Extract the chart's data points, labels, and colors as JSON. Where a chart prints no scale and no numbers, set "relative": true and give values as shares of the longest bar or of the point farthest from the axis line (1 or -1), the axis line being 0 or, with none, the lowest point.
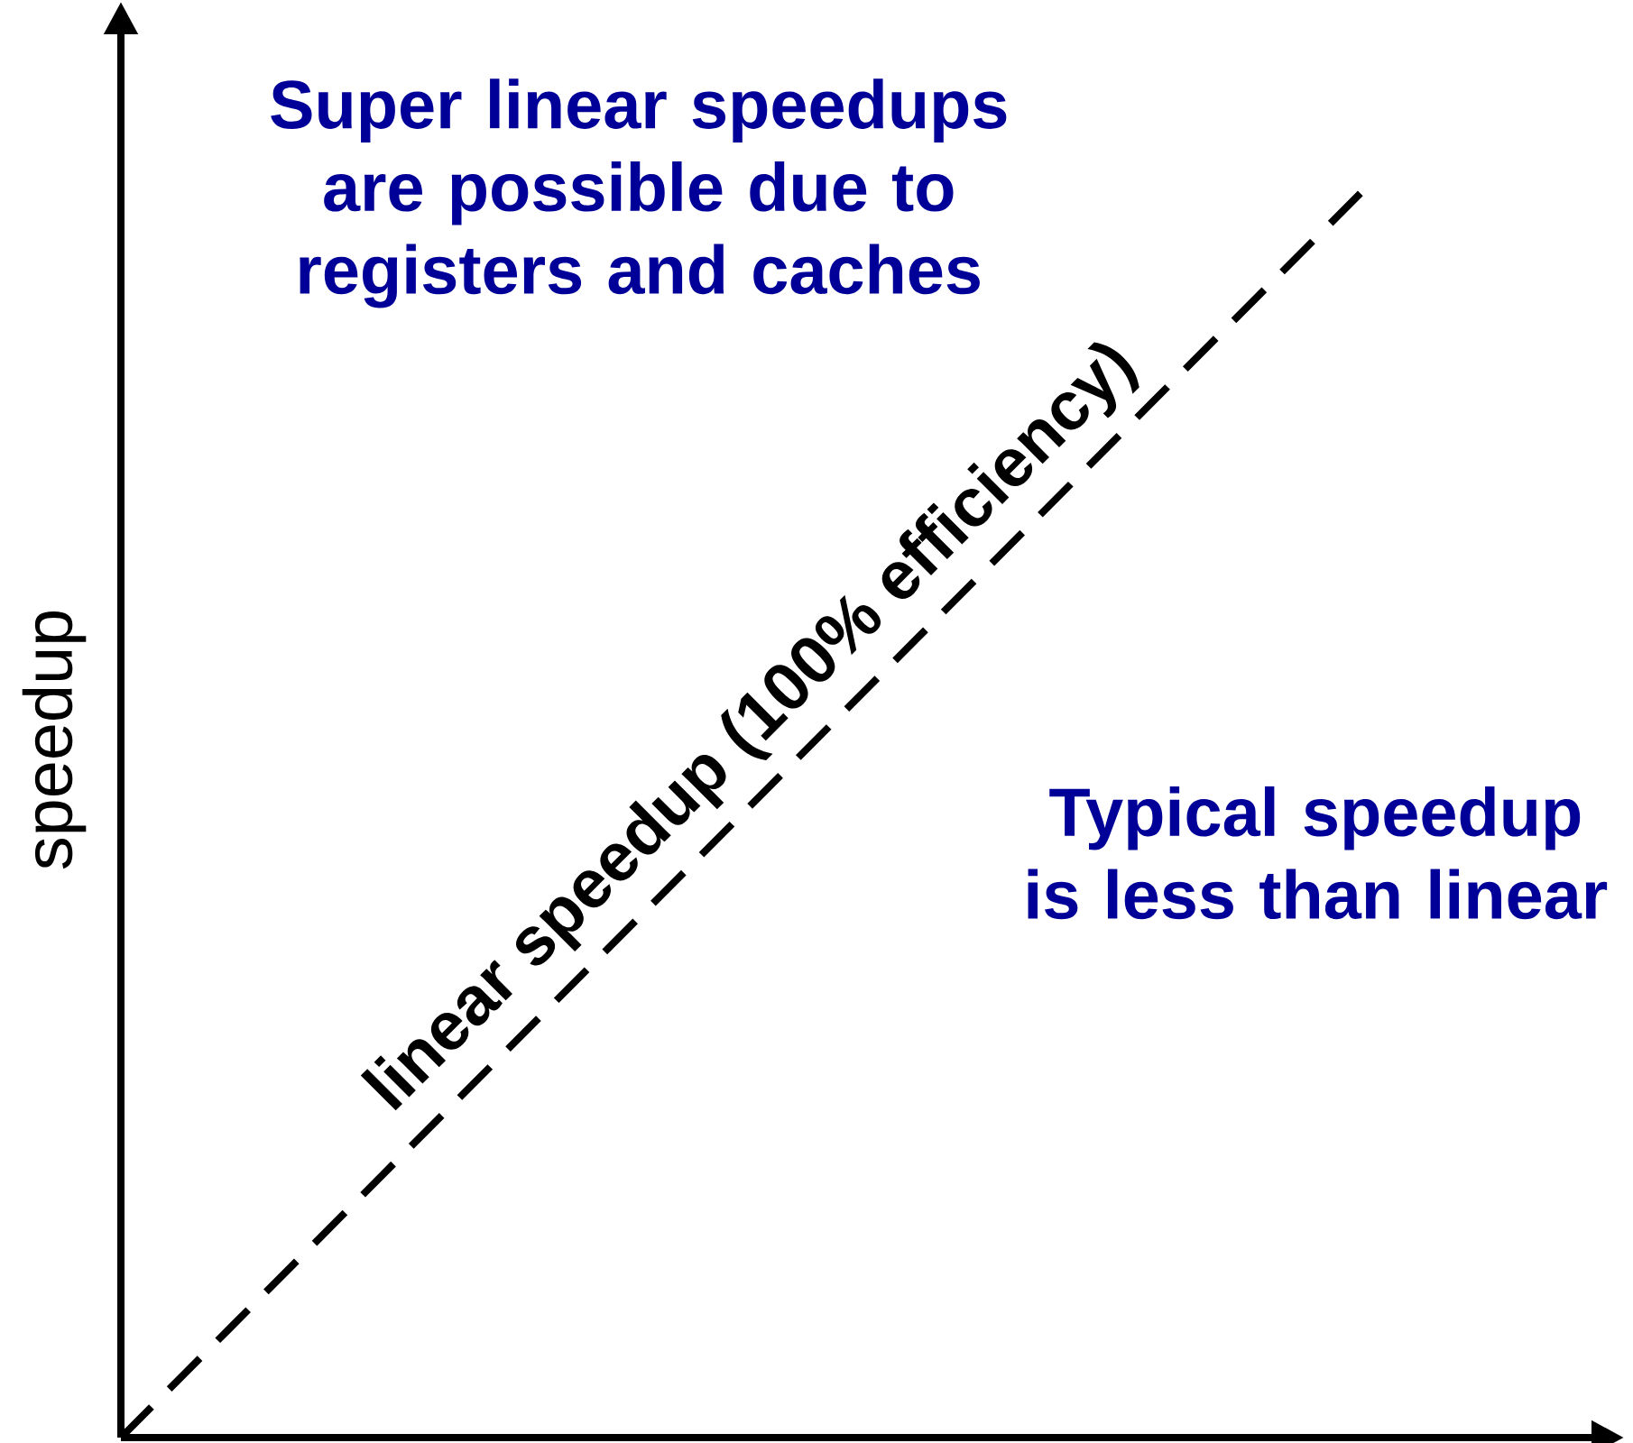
{
  "chart_data": {
    "type": "line",
    "relative": true,
    "ylabel": "speedup",
    "categories": [
      null,
      null
    ],
    "series": [
      {
        "color": "#000000",
        "values": [
          0,
          1
        ],
        "line_style": "dashed"
      }
    ],
    "annotations": [
      "linear speedup (100% efficiency)",
      "Super linear speedups are possible due to registers and caches",
      "Typical speedup is less than linear"
    ],
    "marker": "none"
  }
}
